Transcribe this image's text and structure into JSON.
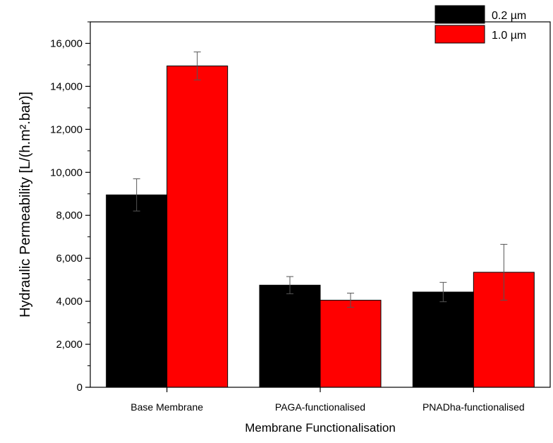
{
  "chart_data": {
    "type": "bar",
    "title": "",
    "xlabel": "Membrane Functionalisation",
    "ylabel": "Hydraulic Permeability [L/(h.m².bar)]",
    "ylim": [
      0,
      17000
    ],
    "y_ticks": [
      0,
      2000,
      4000,
      6000,
      8000,
      10000,
      12000,
      14000,
      16000
    ],
    "y_tick_labels": [
      "0",
      "2,000",
      "4,000",
      "6,000",
      "8,000",
      "10,000",
      "12,000",
      "14,000",
      "16,000"
    ],
    "categories": [
      "Base Membrane",
      "PAGA-functionalised",
      "PNADha-functionalised"
    ],
    "series": [
      {
        "name": "0.2 µm",
        "color": "#000000",
        "values": [
          8950,
          4750,
          4430
        ],
        "errors": [
          750,
          400,
          450
        ]
      },
      {
        "name": "1.0 µm",
        "color": "#ff0000",
        "values": [
          14950,
          4050,
          5350
        ],
        "errors": [
          650,
          330,
          1300
        ]
      }
    ],
    "legend_position": "top-right",
    "grid": false
  }
}
